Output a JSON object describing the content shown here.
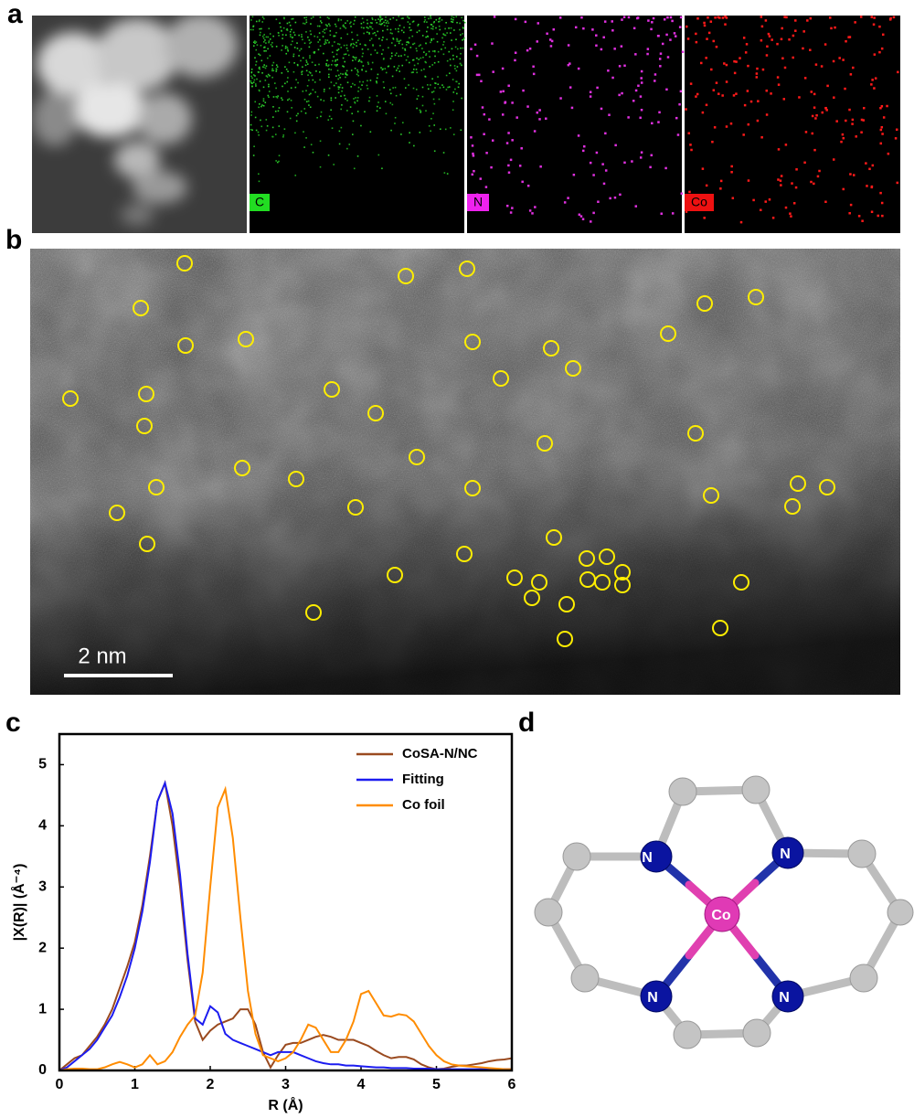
{
  "panels": {
    "a": {
      "label": "a",
      "maps": [
        "C",
        "N",
        "Co"
      ]
    },
    "b": {
      "label": "b",
      "scale_bar": "2 nm"
    },
    "c": {
      "label": "c"
    },
    "d": {
      "label": "d",
      "atoms": [
        "N",
        "N",
        "N",
        "N",
        "Co"
      ]
    }
  },
  "chart_data": {
    "type": "line",
    "x_label": "R (Å)",
    "y_label": "|X(R)| (Å⁻⁴)",
    "xlim": [
      0,
      6
    ],
    "ylim": [
      0,
      5.5
    ],
    "xticks": [
      0,
      1,
      2,
      3,
      4,
      5,
      6
    ],
    "yticks": [
      0,
      1,
      2,
      3,
      4,
      5
    ],
    "legend": "upper right",
    "x": [
      0,
      0.1,
      0.2,
      0.3,
      0.4,
      0.5,
      0.6,
      0.7,
      0.8,
      0.9,
      1,
      1.1,
      1.2,
      1.3,
      1.4,
      1.5,
      1.6,
      1.7,
      1.8,
      1.9,
      2,
      2.1,
      2.2,
      2.3,
      2.4,
      2.5,
      2.6,
      2.7,
      2.8,
      2.9,
      3,
      3.1,
      3.2,
      3.3,
      3.4,
      3.5,
      3.6,
      3.7,
      3.8,
      3.9,
      4,
      4.1,
      4.2,
      4.3,
      4.4,
      4.5,
      4.6,
      4.7,
      4.8,
      4.9,
      5,
      5.1,
      5.2,
      5.3,
      5.4,
      5.5,
      5.6,
      5.7,
      5.8,
      5.9,
      6
    ],
    "series": [
      {
        "name": "CoSA-N/NC",
        "color": "#9a4a1f",
        "values": [
          0,
          0.1,
          0.2,
          0.25,
          0.4,
          0.55,
          0.75,
          1.0,
          1.35,
          1.7,
          2.1,
          2.7,
          3.5,
          4.4,
          4.7,
          4.0,
          3.0,
          1.8,
          0.8,
          0.5,
          0.65,
          0.75,
          0.8,
          0.85,
          1.0,
          1.0,
          0.75,
          0.3,
          0.05,
          0.25,
          0.42,
          0.45,
          0.45,
          0.5,
          0.55,
          0.58,
          0.55,
          0.5,
          0.5,
          0.5,
          0.45,
          0.4,
          0.32,
          0.25,
          0.2,
          0.22,
          0.22,
          0.18,
          0.1,
          0.05,
          0.02,
          0.03,
          0.06,
          0.08,
          0.08,
          0.1,
          0.12,
          0.15,
          0.17,
          0.18,
          0.2
        ]
      },
      {
        "name": "Fitting",
        "color": "#1c1cf0",
        "values": [
          0,
          0.05,
          0.15,
          0.25,
          0.35,
          0.5,
          0.7,
          0.9,
          1.2,
          1.55,
          2.0,
          2.6,
          3.4,
          4.4,
          4.7,
          4.2,
          3.2,
          1.9,
          0.85,
          0.75,
          1.05,
          0.95,
          0.6,
          0.5,
          0.45,
          0.4,
          0.35,
          0.3,
          0.25,
          0.3,
          0.3,
          0.3,
          0.25,
          0.2,
          0.15,
          0.12,
          0.1,
          0.1,
          0.08,
          0.08,
          0.07,
          0.06,
          0.05,
          0.05,
          0.04,
          0.04,
          0.04,
          0.03,
          0.03,
          0.03,
          0.02,
          0.02,
          0.02,
          0.02,
          0.02,
          0.02,
          0.02,
          0.02,
          0.02,
          0.02,
          0.02
        ]
      },
      {
        "name": "Co foil",
        "color": "#ff8c00",
        "values": [
          0,
          0.02,
          0.03,
          0.03,
          0.02,
          0.02,
          0.05,
          0.1,
          0.14,
          0.1,
          0.05,
          0.1,
          0.25,
          0.1,
          0.15,
          0.3,
          0.55,
          0.75,
          0.9,
          1.6,
          3.0,
          4.3,
          4.6,
          3.8,
          2.5,
          1.3,
          0.6,
          0.25,
          0.2,
          0.15,
          0.2,
          0.3,
          0.5,
          0.75,
          0.7,
          0.5,
          0.3,
          0.3,
          0.5,
          0.8,
          1.25,
          1.3,
          1.1,
          0.9,
          0.88,
          0.92,
          0.9,
          0.8,
          0.6,
          0.4,
          0.25,
          0.15,
          0.1,
          0.08,
          0.07,
          0.06,
          0.05,
          0.04,
          0.03,
          0.02,
          0.02
        ]
      }
    ]
  }
}
